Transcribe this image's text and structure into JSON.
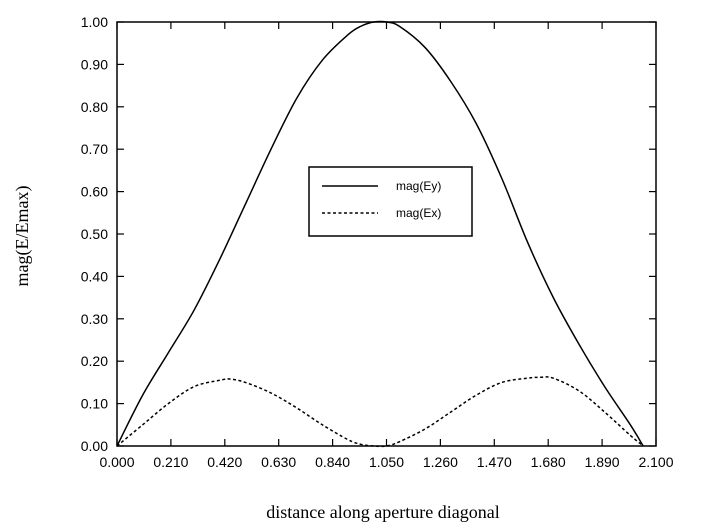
{
  "chart_data": {
    "type": "line",
    "title": "",
    "xlabel": "distance along aperture diagonal",
    "ylabel": "mag(E/Emax)",
    "xlim": [
      0.0,
      2.1
    ],
    "ylim": [
      0.0,
      1.0
    ],
    "x_ticks": [
      "0.000",
      "0.210",
      "0.420",
      "0.630",
      "0.840",
      "1.050",
      "1.260",
      "1.470",
      "1.680",
      "1.890",
      "2.100"
    ],
    "y_ticks": [
      "0.00",
      "0.10",
      "0.20",
      "0.30",
      "0.40",
      "0.50",
      "0.60",
      "0.70",
      "0.80",
      "0.90",
      "1.00"
    ],
    "grid": false,
    "legend_position": "center",
    "series": [
      {
        "name": "mag(Ey)",
        "style": "solid",
        "color": "#000000",
        "x": [
          0.0,
          0.1,
          0.2,
          0.3,
          0.4,
          0.5,
          0.6,
          0.7,
          0.8,
          0.9,
          0.95,
          1.0,
          1.05,
          1.1,
          1.2,
          1.3,
          1.4,
          1.5,
          1.6,
          1.7,
          1.8,
          1.9,
          2.0,
          2.05
        ],
        "values": [
          0.0,
          0.12,
          0.22,
          0.32,
          0.44,
          0.57,
          0.7,
          0.82,
          0.91,
          0.97,
          0.99,
          1.0,
          1.0,
          0.99,
          0.94,
          0.86,
          0.76,
          0.63,
          0.48,
          0.35,
          0.24,
          0.14,
          0.05,
          0.0
        ]
      },
      {
        "name": "mag(Ex)",
        "style": "dashed",
        "color": "#000000",
        "x": [
          0.0,
          0.1,
          0.2,
          0.3,
          0.4,
          0.44,
          0.5,
          0.6,
          0.7,
          0.8,
          0.9,
          0.95,
          1.0,
          1.05,
          1.1,
          1.2,
          1.3,
          1.4,
          1.5,
          1.6,
          1.65,
          1.7,
          1.8,
          1.9,
          2.0,
          2.05
        ],
        "values": [
          0.0,
          0.05,
          0.1,
          0.14,
          0.155,
          0.158,
          0.15,
          0.125,
          0.09,
          0.05,
          0.015,
          0.004,
          0.0,
          0.0,
          0.01,
          0.04,
          0.08,
          0.12,
          0.15,
          0.16,
          0.162,
          0.16,
          0.13,
          0.08,
          0.025,
          0.0
        ]
      }
    ]
  }
}
